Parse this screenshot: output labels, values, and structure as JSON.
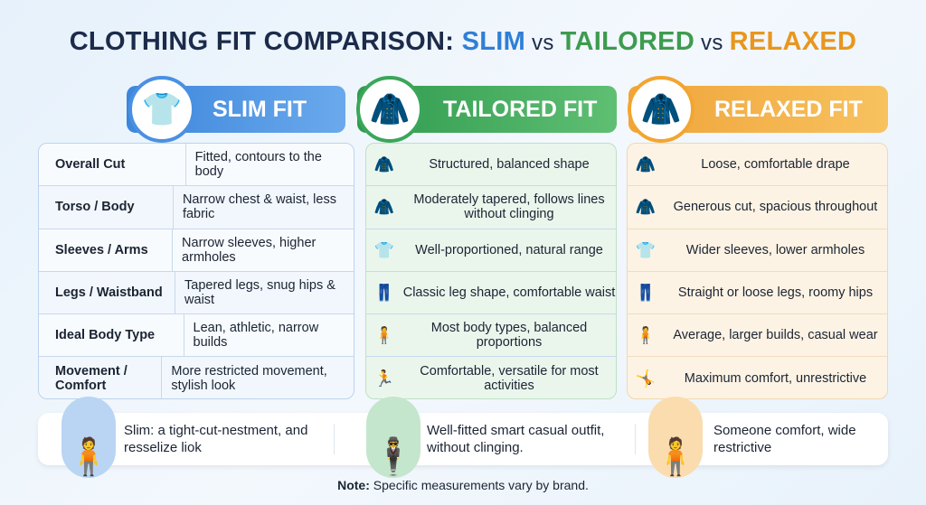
{
  "title": {
    "part1": "CLOTHING FIT COMPARISON: ",
    "slim": "SLIM",
    "vs1": " vs ",
    "tailored": "TAILORED",
    "vs2": " vs ",
    "relaxed": "RELAXED"
  },
  "colors": {
    "slim": "#4a90e2",
    "tailored": "#3aa65a",
    "relaxed": "#f2a531"
  },
  "headers": {
    "slim": "SLIM FIT",
    "tailored": "TAILORED FIT",
    "relaxed": "RELAXED FIT"
  },
  "rows": [
    {
      "label": "Overall Cut",
      "slim": "Fitted, contours to the body",
      "tailored": "Structured, balanced shape",
      "relaxed": "Loose, comfortable drape"
    },
    {
      "label": "Torso / Body",
      "slim": "Narrow chest & waist, less fabric",
      "tailored": "Moderately tapered, follows lines without clinging",
      "relaxed": "Generous cut, spacious throughout"
    },
    {
      "label": "Sleeves / Arms",
      "slim": "Narrow sleeves, higher armholes",
      "tailored": "Well-proportioned, natural range",
      "relaxed": "Wider sleeves, lower armholes"
    },
    {
      "label": "Legs / Waistband",
      "slim": "Tapered legs, snug hips & waist",
      "tailored": "Classic leg shape, comfortable waist",
      "relaxed": "Straight or loose legs, roomy hips"
    },
    {
      "label": "Ideal Body Type",
      "slim": "Lean, athletic, narrow builds",
      "tailored": "Most body types, balanced proportions",
      "relaxed": "Average, larger builds, casual wear"
    },
    {
      "label": "Movement / Comfort",
      "slim": "More restricted movement, stylish look",
      "tailored": "Comfortable, versatile for most activities",
      "relaxed": "Maximum comfort, unrestrictive"
    }
  ],
  "bottom": {
    "slim": "Slim: a tight-cut-nestment, and resselize liok",
    "tailored": "Well-fitted smart casual outfit, without clinging.",
    "relaxed": "Someone comfort, wide restrictive"
  },
  "note": {
    "bold": "Note:",
    "text": " Specific measurements vary by brand."
  }
}
